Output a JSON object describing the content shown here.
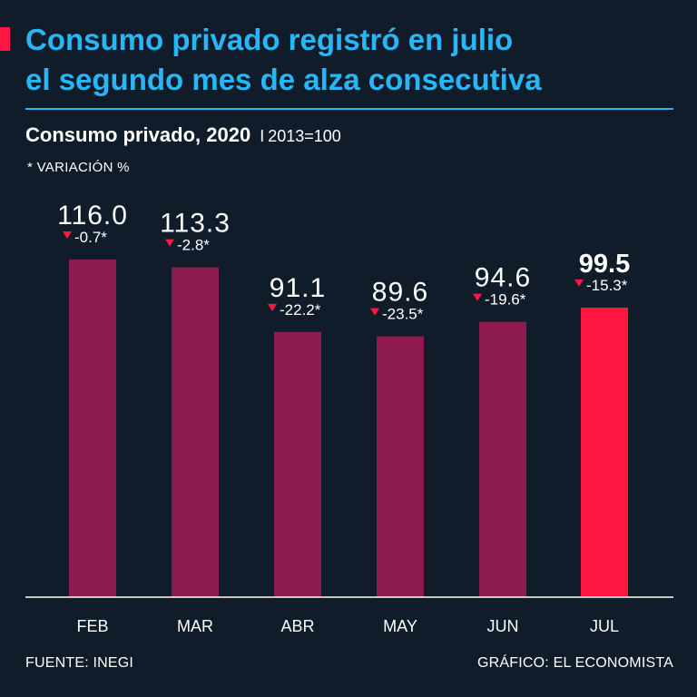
{
  "header": {
    "title_line1": "Consumo privado registró en julio",
    "title_line2": "el segundo mes de alza consecutiva",
    "subtitle": "Consumo privado, 2020",
    "separator": "I",
    "unit": "2013=100",
    "note": "* VARIACIÓN %"
  },
  "footer": {
    "source": "FUENTE: INEGI",
    "credit": "GRÁFICO: EL ECONOMISTA"
  },
  "colors": {
    "background": "#111c2b",
    "title": "#29b6f6",
    "bar": "#8e1b4f",
    "highlight_bar": "#ff1744",
    "down_marker": "#ff1744",
    "axis": "#ffffff"
  },
  "chart_data": {
    "type": "bar",
    "title": "Consumo privado, 2020",
    "xlabel": "",
    "ylabel": "",
    "categories": [
      "FEB",
      "MAR",
      "ABR",
      "MAY",
      "JUN",
      "JUL"
    ],
    "values": [
      116.0,
      113.3,
      91.1,
      89.6,
      94.6,
      99.5
    ],
    "value_labels": [
      "116.0",
      "113.3",
      "91.1",
      "89.6",
      "94.6",
      "99.5"
    ],
    "variation_labels": [
      "-0.7*",
      "-2.8*",
      "-22.2*",
      "-23.5*",
      "-19.6*",
      "-15.3*"
    ],
    "variation_direction": [
      "down",
      "down",
      "down",
      "down",
      "down",
      "down"
    ],
    "highlight_index": 5,
    "ylim": [
      0,
      116.0
    ],
    "grid": false
  }
}
